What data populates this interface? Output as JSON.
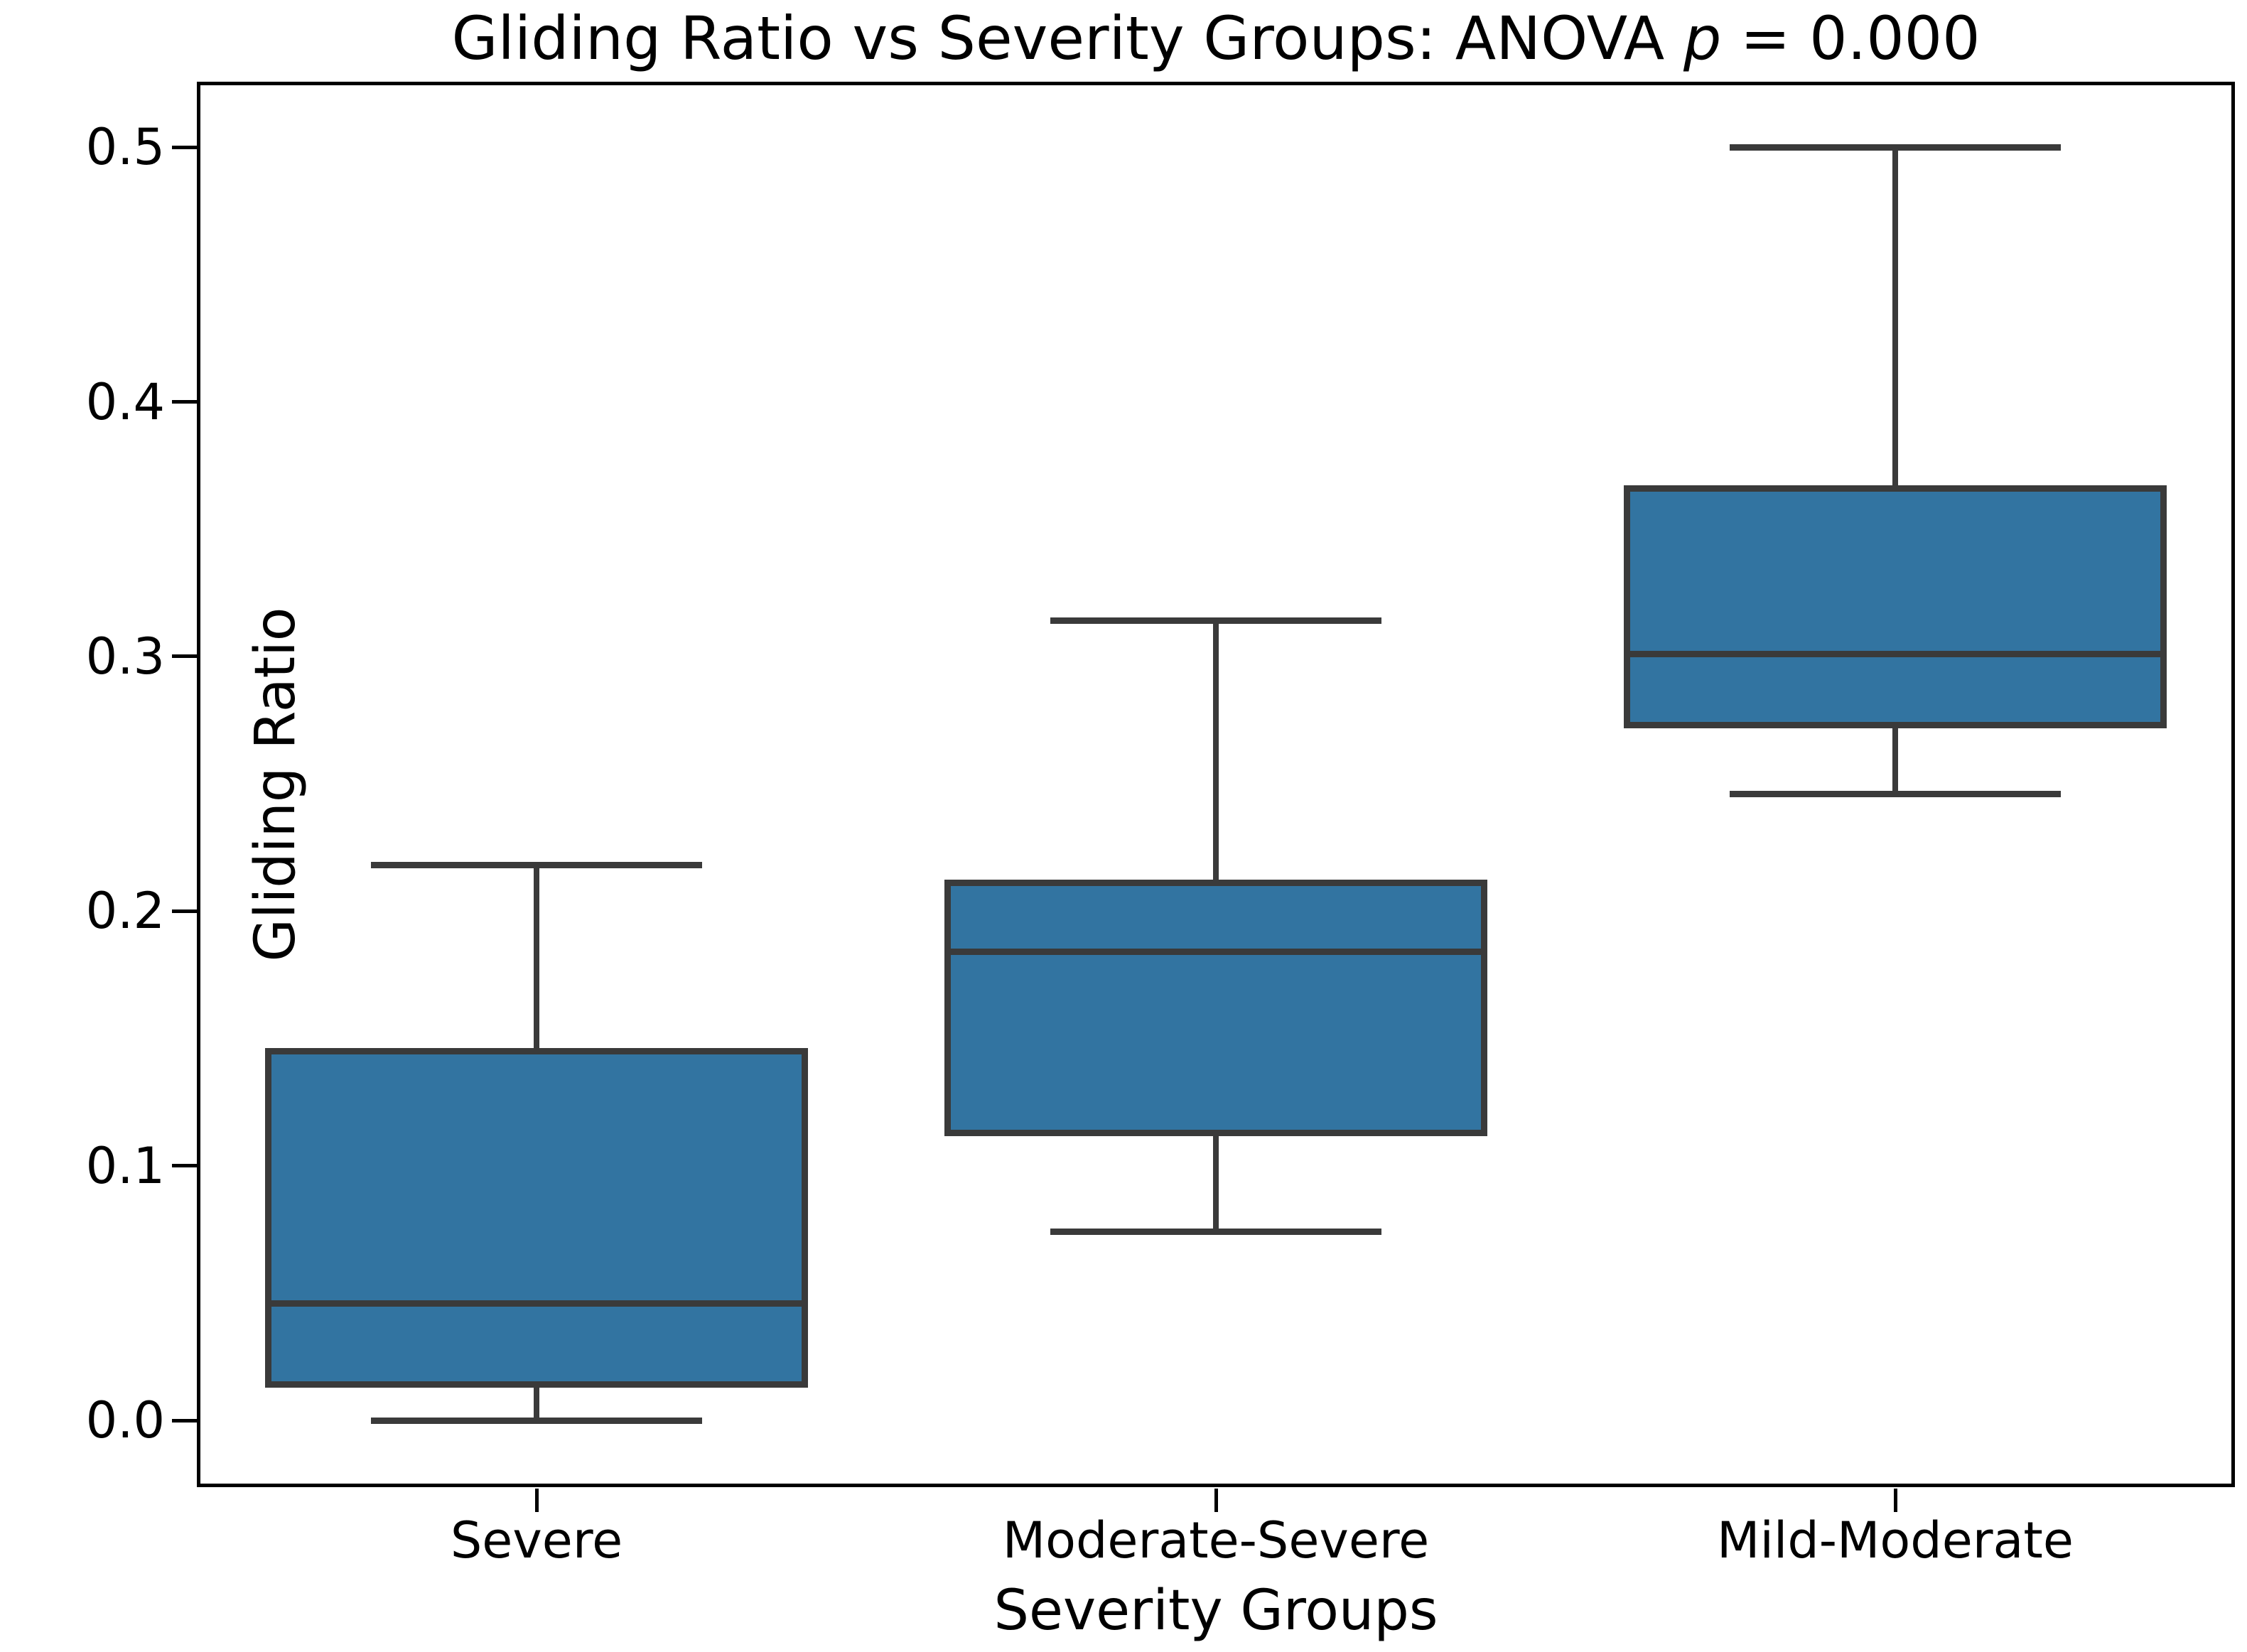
{
  "title": {
    "text_before_p": "Gliding Ratio vs Severity Groups: ANOVA ",
    "p_symbol": "p",
    "text_after_p": " = 0.000"
  },
  "chart_data": {
    "type": "box",
    "title": "Gliding Ratio vs Severity Groups: ANOVA p = 0.000",
    "xlabel": "Severity Groups",
    "ylabel": "Gliding Ratio",
    "categories": [
      "Severe",
      "Moderate-Severe",
      "Mild-Moderate"
    ],
    "series": [
      {
        "name": "Severe",
        "whisker_low": 0.0,
        "q1": 0.014,
        "median": 0.046,
        "q3": 0.145,
        "whisker_high": 0.218
      },
      {
        "name": "Moderate-Severe",
        "whisker_low": 0.074,
        "q1": 0.113,
        "median": 0.184,
        "q3": 0.211,
        "whisker_high": 0.314
      },
      {
        "name": "Mild-Moderate",
        "whisker_low": 0.246,
        "q1": 0.273,
        "median": 0.301,
        "q3": 0.366,
        "whisker_high": 0.5
      }
    ],
    "yticks": [
      0.0,
      0.1,
      0.2,
      0.3,
      0.4,
      0.5
    ],
    "ytick_labels": [
      "0.0",
      "0.1",
      "0.2",
      "0.3",
      "0.4",
      "0.5"
    ],
    "ylim": [
      -0.0262,
      0.5257
    ],
    "grid": false,
    "legend": null,
    "colors": {
      "box_fill": "#3274a1",
      "box_edge": "#3a3a3a",
      "spine": "#000000",
      "text": "#000000"
    }
  }
}
